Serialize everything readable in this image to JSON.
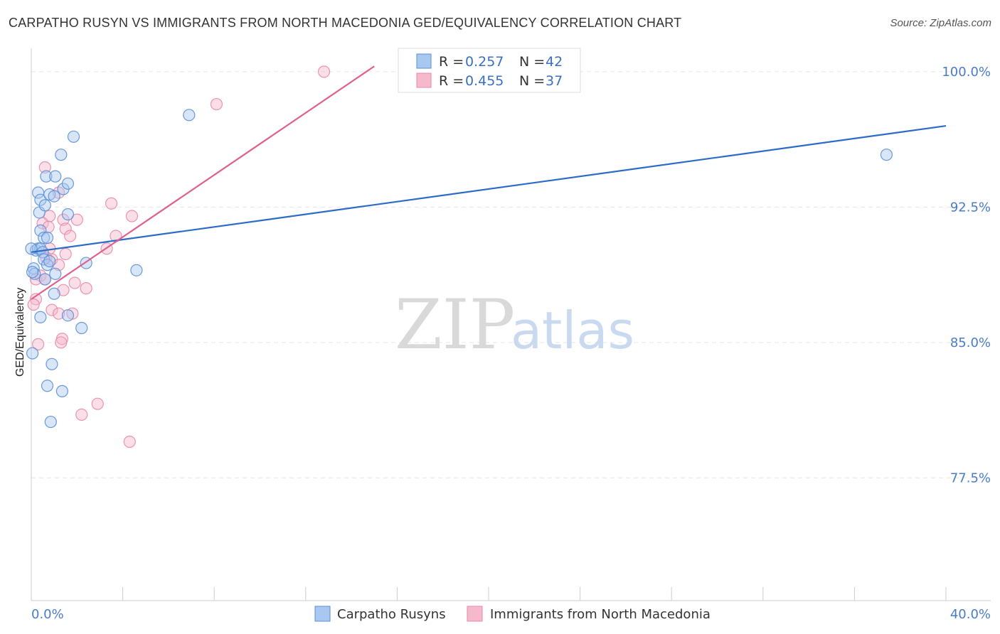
{
  "header": {
    "title": "CARPATHO RUSYN VS IMMIGRANTS FROM NORTH MACEDONIA GED/EQUIVALENCY CORRELATION CHART",
    "source": "Source: ZipAtlas.com"
  },
  "watermark": {
    "zip": "ZIP",
    "atlas": "atlas"
  },
  "colors": {
    "blue_fill": "#a9c8f0",
    "blue_stroke": "#5b8fd8",
    "blue_line": "#2b6cc8",
    "pink_fill": "#f6b8cb",
    "pink_stroke": "#e88aa8",
    "pink_line": "#e0608c",
    "axis_text": "#4a7cc7",
    "grid": "#e6e6e6"
  },
  "legend": {
    "rows": [
      {
        "r_label": "R =",
        "r_value": "0.257",
        "n_label": "N =",
        "n_value": "42"
      },
      {
        "r_label": "R =",
        "r_value": "0.455",
        "n_label": "N =",
        "n_value": "37"
      }
    ]
  },
  "chart_data": {
    "type": "scatter",
    "title": "CARPATHO RUSYN VS IMMIGRANTS FROM NORTH MACEDONIA GED/EQUIVALENCY CORRELATION CHART",
    "xlabel": "",
    "ylabel": "GED/Equivalency",
    "xlim": [
      0,
      40
    ],
    "ylim": [
      70,
      101
    ],
    "x_tick_labels": [
      "0.0%",
      "40.0%"
    ],
    "y_ticks": [
      77.5,
      85.0,
      92.5,
      100.0
    ],
    "y_tick_labels": [
      "77.5%",
      "85.0%",
      "92.5%",
      "100.0%"
    ],
    "grid": true,
    "series": [
      {
        "name": "Carpatho Rusyns",
        "color": "blue",
        "points": [
          [
            0.3,
            93.3
          ],
          [
            0.35,
            92.2
          ],
          [
            0.4,
            92.9
          ],
          [
            0.6,
            92.6
          ],
          [
            0.65,
            94.2
          ],
          [
            0.8,
            93.2
          ],
          [
            1.0,
            93.1
          ],
          [
            1.05,
            94.2
          ],
          [
            1.4,
            93.5
          ],
          [
            1.6,
            93.8
          ],
          [
            1.3,
            95.4
          ],
          [
            1.85,
            96.4
          ],
          [
            0.4,
            91.2
          ],
          [
            0.55,
            90.8
          ],
          [
            0.7,
            90.8
          ],
          [
            0.2,
            90.1
          ],
          [
            0.3,
            90.2
          ],
          [
            0.4,
            90.2
          ],
          [
            0.5,
            90.0
          ],
          [
            0.55,
            89.6
          ],
          [
            0.7,
            89.3
          ],
          [
            0.1,
            89.1
          ],
          [
            0.15,
            88.8
          ],
          [
            0.6,
            88.5
          ],
          [
            1.05,
            88.8
          ],
          [
            1.6,
            92.1
          ],
          [
            2.4,
            89.4
          ],
          [
            0.4,
            86.4
          ],
          [
            1.0,
            87.7
          ],
          [
            1.6,
            86.5
          ],
          [
            2.2,
            85.8
          ],
          [
            0.9,
            83.8
          ],
          [
            0.7,
            82.6
          ],
          [
            1.35,
            82.3
          ],
          [
            0.85,
            80.6
          ],
          [
            4.6,
            89.0
          ],
          [
            6.9,
            97.6
          ],
          [
            37.4,
            95.4
          ],
          [
            0.0,
            90.2
          ],
          [
            0.05,
            88.9
          ],
          [
            0.05,
            84.4
          ],
          [
            0.8,
            89.5
          ]
        ],
        "trend": {
          "x": [
            0.0,
            40.0
          ],
          "y": [
            90.0,
            97.0
          ]
        }
      },
      {
        "name": "Immigrants from North Macedonia",
        "color": "pink",
        "points": [
          [
            0.6,
            94.7
          ],
          [
            1.2,
            93.3
          ],
          [
            0.8,
            92.0
          ],
          [
            0.5,
            91.6
          ],
          [
            1.4,
            91.8
          ],
          [
            2.0,
            91.8
          ],
          [
            0.75,
            91.4
          ],
          [
            1.5,
            91.3
          ],
          [
            1.7,
            90.9
          ],
          [
            0.8,
            90.2
          ],
          [
            1.5,
            89.9
          ],
          [
            0.65,
            89.7
          ],
          [
            0.9,
            89.6
          ],
          [
            1.2,
            89.3
          ],
          [
            0.4,
            88.7
          ],
          [
            0.2,
            88.5
          ],
          [
            0.6,
            88.5
          ],
          [
            1.9,
            88.3
          ],
          [
            2.4,
            88.0
          ],
          [
            1.4,
            87.9
          ],
          [
            0.2,
            87.4
          ],
          [
            0.1,
            87.1
          ],
          [
            0.9,
            86.8
          ],
          [
            1.2,
            86.6
          ],
          [
            1.8,
            86.6
          ],
          [
            0.3,
            84.9
          ],
          [
            1.35,
            85.2
          ],
          [
            1.3,
            85.0
          ],
          [
            2.9,
            81.6
          ],
          [
            2.2,
            81.0
          ],
          [
            4.3,
            79.5
          ],
          [
            3.5,
            92.7
          ],
          [
            4.4,
            92.0
          ],
          [
            3.7,
            90.9
          ],
          [
            3.3,
            90.2
          ],
          [
            8.1,
            98.2
          ],
          [
            12.8,
            100.0
          ]
        ],
        "trend": {
          "x": [
            0.0,
            15.0
          ],
          "y": [
            87.4,
            100.3
          ]
        }
      }
    ]
  },
  "bottom_legend": {
    "items": [
      {
        "label": "Carpatho Rusyns"
      },
      {
        "label": "Immigrants from North Macedonia"
      }
    ]
  }
}
